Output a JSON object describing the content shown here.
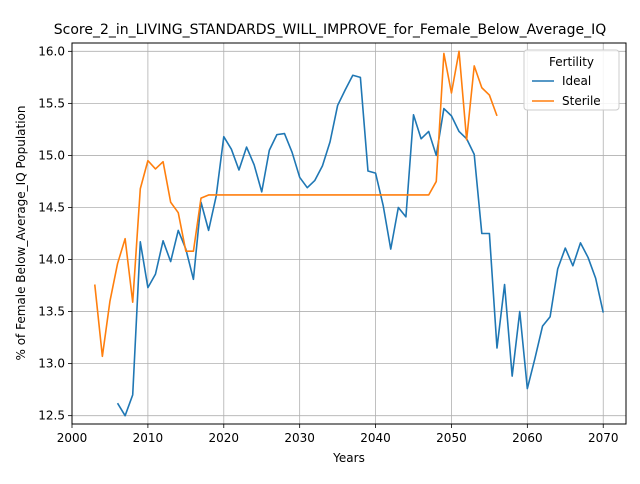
{
  "chart_data": {
    "type": "line",
    "title": "Score_2_in_LIVING_STANDARDS_WILL_IMPROVE_for_Female_Below_Average_IQ",
    "xlabel": "Years",
    "ylabel": "% of Female Below_Average_IQ Population",
    "xlim": [
      2000,
      2073
    ],
    "ylim": [
      12.42,
      16.08
    ],
    "xticks": [
      2000,
      2010,
      2020,
      2030,
      2040,
      2050,
      2060,
      2070
    ],
    "yticks": [
      12.5,
      13.0,
      13.5,
      14.0,
      14.5,
      15.0,
      15.5,
      16.0
    ],
    "grid": true,
    "legend": {
      "title": "Fertility",
      "position": "top-right"
    },
    "series": [
      {
        "name": "Ideal",
        "color": "#1f77b4",
        "x": [
          2006,
          2007,
          2008,
          2009,
          2010,
          2011,
          2012,
          2013,
          2014,
          2015,
          2016,
          2017,
          2018,
          2019,
          2020,
          2021,
          2022,
          2023,
          2024,
          2025,
          2026,
          2027,
          2028,
          2029,
          2030,
          2031,
          2032,
          2033,
          2034,
          2035,
          2036,
          2037,
          2038,
          2039,
          2040,
          2041,
          2042,
          2043,
          2044,
          2045,
          2046,
          2047,
          2048,
          2049,
          2050,
          2051,
          2052,
          2053,
          2054,
          2055,
          2056,
          2057,
          2058,
          2059,
          2060,
          2061,
          2062,
          2063,
          2064,
          2065,
          2066,
          2067,
          2068,
          2069,
          2070
        ],
        "y": [
          12.62,
          12.5,
          12.7,
          14.17,
          13.73,
          13.86,
          14.18,
          13.98,
          14.28,
          14.1,
          13.81,
          14.55,
          14.28,
          14.61,
          15.18,
          15.06,
          14.86,
          15.08,
          14.91,
          14.65,
          15.05,
          15.2,
          15.21,
          15.03,
          14.79,
          14.69,
          14.76,
          14.9,
          15.13,
          15.48,
          15.63,
          15.77,
          15.75,
          14.85,
          14.83,
          14.52,
          14.1,
          14.5,
          14.41,
          15.39,
          15.16,
          15.23,
          15.0,
          15.45,
          15.38,
          15.23,
          15.16,
          15.01,
          14.25,
          14.25,
          13.15,
          13.76,
          12.88,
          13.5,
          12.76,
          13.05,
          13.36,
          13.45,
          13.91,
          14.11,
          13.94,
          14.16,
          14.02,
          13.82,
          13.49
        ]
      },
      {
        "name": "Sterile",
        "color": "#ff7f0e",
        "x": [
          2003,
          2004,
          2005,
          2006,
          2007,
          2008,
          2009,
          2010,
          2011,
          2012,
          2013,
          2014,
          2015,
          2016,
          2017,
          2018,
          2019,
          2020,
          2021,
          2022,
          2023,
          2024,
          2025,
          2026,
          2027,
          2028,
          2029,
          2030,
          2031,
          2032,
          2033,
          2034,
          2035,
          2036,
          2037,
          2038,
          2039,
          2040,
          2041,
          2042,
          2043,
          2044,
          2045,
          2046,
          2047,
          2048,
          2049,
          2050,
          2051,
          2052,
          2053,
          2054,
          2055,
          2056
        ],
        "y": [
          13.76,
          13.07,
          13.6,
          13.96,
          14.2,
          13.59,
          14.68,
          14.95,
          14.87,
          14.94,
          14.55,
          14.45,
          14.08,
          14.08,
          14.59,
          14.62,
          14.62,
          14.62,
          14.62,
          14.62,
          14.62,
          14.62,
          14.62,
          14.62,
          14.62,
          14.62,
          14.62,
          14.62,
          14.62,
          14.62,
          14.62,
          14.62,
          14.62,
          14.62,
          14.62,
          14.62,
          14.62,
          14.62,
          14.62,
          14.62,
          14.62,
          14.62,
          14.62,
          14.62,
          14.62,
          14.75,
          15.98,
          15.6,
          16.0,
          15.15,
          15.86,
          15.65,
          15.58,
          15.38
        ]
      }
    ]
  }
}
